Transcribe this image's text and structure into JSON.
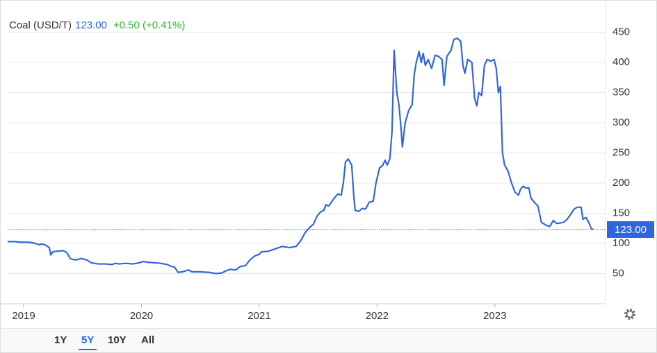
{
  "chart_data": {
    "type": "line",
    "series": [
      {
        "name": "Coal (USD/T)",
        "color": "#2f66e0",
        "x": [
          2018.864,
          2018.923,
          2018.982,
          2019.041,
          2019.1,
          2019.13,
          2019.159,
          2019.189,
          2019.218,
          2019.23,
          2019.248,
          2019.277,
          2019.336,
          2019.366,
          2019.395,
          2019.425,
          2019.454,
          2019.484,
          2019.513,
          2019.543,
          2019.572,
          2019.631,
          2019.69,
          2019.749,
          2019.779,
          2019.808,
          2019.867,
          2019.926,
          2019.985,
          2020.015,
          2020.044,
          2020.103,
          2020.162,
          2020.221,
          2020.251,
          2020.28,
          2020.31,
          2020.351,
          2020.398,
          2020.428,
          2020.487,
          2020.575,
          2020.634,
          2020.682,
          2020.723,
          2020.752,
          2020.8,
          2020.841,
          2020.882,
          2020.918,
          2020.959,
          2021.0,
          2021.018,
          2021.077,
          2021.136,
          2021.195,
          2021.254,
          2021.313,
          2021.354,
          2021.39,
          2021.431,
          2021.46,
          2021.49,
          2021.519,
          2021.549,
          2021.566,
          2021.59,
          2021.625,
          2021.667,
          2021.696,
          2021.714,
          2021.732,
          2021.755,
          2021.785,
          2021.802,
          2021.814,
          2021.844,
          2021.873,
          2021.903,
          2021.932,
          2021.968,
          2021.991,
          2022.021,
          2022.05,
          2022.068,
          2022.086,
          2022.109,
          2022.127,
          2022.145,
          2022.168,
          2022.186,
          2022.204,
          2022.215,
          2022.239,
          2022.268,
          2022.298,
          2022.316,
          2022.333,
          2022.357,
          2022.375,
          2022.392,
          2022.41,
          2022.434,
          2022.463,
          2022.493,
          2022.522,
          2022.552,
          2022.569,
          2022.593,
          2022.628,
          2022.652,
          2022.681,
          2022.711,
          2022.729,
          2022.746,
          2022.77,
          2022.805,
          2022.829,
          2022.847,
          2022.864,
          2022.888,
          2022.912,
          2022.935,
          2022.965,
          2022.994,
          2023.012,
          2023.03,
          2023.047,
          2023.065,
          2023.083,
          2023.112,
          2023.142,
          2023.171,
          2023.201,
          2023.218,
          2023.242,
          2023.26,
          2023.289,
          2023.307,
          2023.336,
          2023.366,
          2023.395,
          2023.437,
          2023.466,
          2023.496,
          2023.525,
          2023.584,
          2023.614,
          2023.643,
          2023.673,
          2023.702,
          2023.732,
          2023.749,
          2023.773,
          2023.797,
          2023.82,
          2023.838
        ],
        "values": [
          103,
          103,
          102,
          102,
          100,
          98,
          99,
          97,
          93,
          81,
          86,
          87,
          88,
          85,
          75,
          73,
          73,
          75,
          74,
          72,
          68,
          66,
          66,
          65,
          67,
          66,
          67,
          66,
          68,
          70,
          69,
          68,
          67,
          65,
          62,
          61,
          52,
          53,
          56,
          53,
          53,
          52,
          50,
          51,
          55,
          57,
          56,
          62,
          63,
          72,
          79,
          82,
          86,
          87,
          91,
          95,
          93,
          95,
          105,
          118,
          127,
          132,
          145,
          152,
          155,
          164,
          162,
          172,
          182,
          180,
          200,
          235,
          240,
          230,
          180,
          155,
          153,
          158,
          157,
          168,
          170,
          200,
          225,
          230,
          238,
          230,
          240,
          285,
          420,
          350,
          330,
          290,
          260,
          300,
          320,
          330,
          380,
          400,
          418,
          400,
          415,
          395,
          405,
          390,
          412,
          410,
          405,
          362,
          410,
          420,
          438,
          440,
          435,
          395,
          382,
          405,
          400,
          340,
          328,
          350,
          345,
          395,
          405,
          402,
          405,
          390,
          350,
          360,
          250,
          230,
          220,
          200,
          185,
          180,
          190,
          195,
          192,
          192,
          175,
          168,
          162,
          135,
          130,
          128,
          138,
          133,
          135,
          140,
          148,
          157,
          160,
          160,
          140,
          143,
          135,
          124,
          123
        ]
      }
    ],
    "last_value": {
      "value": 123,
      "label": "123.00"
    },
    "change": "+0.50 (+0.41%)",
    "xlim": [
      2018.864,
      2023.94
    ],
    "xticks": [
      2019,
      2020,
      2021,
      2022,
      2023
    ],
    "ylim": [
      0,
      500
    ],
    "yticks": [
      50,
      100,
      150,
      200,
      250,
      300,
      350,
      400,
      450
    ],
    "grid": true
  },
  "ranges": [
    "1Y",
    "5Y",
    "10Y",
    "All"
  ],
  "selected_range_index": 1
}
